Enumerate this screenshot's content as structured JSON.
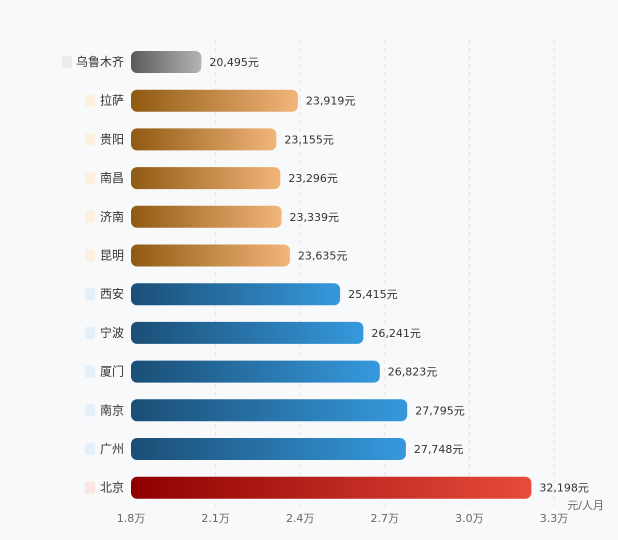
{
  "chart_data": {
    "type": "bar",
    "orientation": "horizontal",
    "value_unit": "元",
    "unit_label": "元/人月",
    "categories": [
      "乌鲁木齐",
      "拉萨",
      "贵阳",
      "南昌",
      "济南",
      "昆明",
      "西安",
      "宁波",
      "厦门",
      "南京",
      "广州",
      "北京"
    ],
    "values": [
      20495,
      23919,
      23155,
      23296,
      23339,
      23635,
      25415,
      26241,
      26823,
      27795,
      27748,
      32198
    ],
    "value_labels": [
      "20,495元",
      "23,919元",
      "23,155元",
      "23,296元",
      "23,339元",
      "23,635元",
      "25,415元",
      "26,241元",
      "26,823元",
      "27,795元",
      "27,748元",
      "32,198元"
    ],
    "groups": [
      "gray",
      "orange",
      "orange",
      "orange",
      "orange",
      "orange",
      "blue",
      "blue",
      "blue",
      "blue",
      "blue",
      "red"
    ],
    "xlim": [
      18000,
      33000
    ],
    "ticks": [
      18000,
      21000,
      24000,
      27000,
      30000,
      33000
    ],
    "tick_labels": [
      "1.8万",
      "2.1万",
      "2.4万",
      "2.7万",
      "3.0万",
      "3.3万"
    ],
    "grid": true,
    "colors": {
      "gray": {
        "start": "#5a5a5a",
        "end": "#b4b4b4",
        "badge": "#ececec"
      },
      "orange": {
        "start": "#8f5a12",
        "end": "#f2b57a",
        "badge": "#fdf0e0"
      },
      "blue": {
        "start": "#1a4e75",
        "end": "#3699dd",
        "badge": "#e3f0fb"
      },
      "red": {
        "start": "#8e0000",
        "end": "#e74c3c",
        "badge": "#fbe4e4"
      }
    }
  }
}
